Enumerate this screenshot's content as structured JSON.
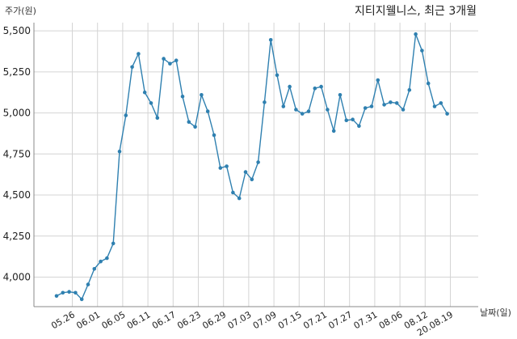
{
  "chart_data": {
    "type": "line",
    "title": "지티지웰니스, 최근 3개월",
    "ylabel": "주가(원)",
    "xlabel": "날짜(일)",
    "ylim": [
      3820,
      5550
    ],
    "yticks": [
      4000,
      4250,
      4500,
      4750,
      5000,
      5250,
      5500
    ],
    "ytick_labels": [
      "4,000",
      "4,250",
      "4,500",
      "4,750",
      "5,000",
      "5,250",
      "5,500"
    ],
    "xtick_labels": [
      "05.26",
      "06.01",
      "06.05",
      "06.11",
      "06.17",
      "06.23",
      "06.29",
      "07.03",
      "07.09",
      "07.15",
      "07.21",
      "07.27",
      "07.31",
      "08.06",
      "08.12",
      "20.08.19"
    ],
    "xtick_index": [
      2.5,
      6.5,
      10.5,
      14.5,
      18.5,
      22.5,
      26.5,
      30.5,
      34.5,
      38.5,
      42.5,
      46.5,
      50.5,
      54.5,
      58.5,
      62.5
    ],
    "grid": true,
    "line_color": "#2f80b0",
    "series": [
      {
        "values": [
          3885,
          3905,
          3910,
          3905,
          3865,
          3955,
          4050,
          4095,
          4115,
          4205,
          4765,
          4985,
          5280,
          5360,
          5125,
          5060,
          4970,
          5330,
          5300,
          5320,
          5100,
          4945,
          4915,
          5110,
          5010,
          4865,
          4665,
          4675,
          4515,
          4480,
          4640,
          4595,
          4700,
          5065,
          5445,
          5230,
          5040,
          5160,
          5020,
          4995,
          5010,
          5150,
          5160,
          5020,
          4890,
          5110,
          4955,
          4960,
          4920,
          5030,
          5040,
          5200,
          5050,
          5065,
          5060,
          5020,
          5140,
          5480,
          5380,
          5180,
          5040,
          5060,
          4995
        ]
      }
    ]
  }
}
